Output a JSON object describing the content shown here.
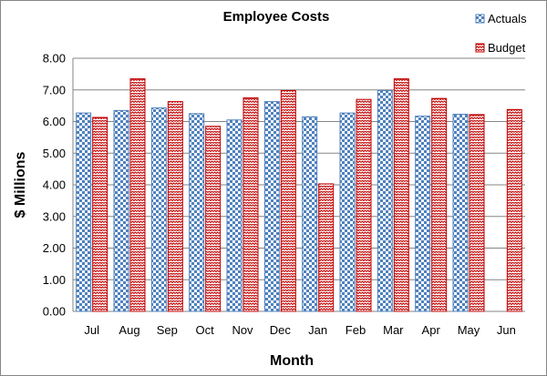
{
  "chart_data": {
    "type": "bar",
    "title": "Employee Costs",
    "xlabel": "Month",
    "ylabel": "$ Millions",
    "categories": [
      "Jul",
      "Aug",
      "Sep",
      "Oct",
      "Nov",
      "Dec",
      "Jan",
      "Feb",
      "Mar",
      "Apr",
      "May",
      "Jun"
    ],
    "series": [
      {
        "name": "Actuals",
        "color": "#4f81bd",
        "pattern": "checkerboard",
        "values": [
          6.27,
          6.35,
          6.43,
          6.25,
          6.05,
          6.63,
          6.15,
          6.27,
          6.98,
          6.17,
          6.23,
          null
        ]
      },
      {
        "name": "Budget",
        "color": "#c00000",
        "pattern": "zigzag",
        "values": [
          6.13,
          7.35,
          6.63,
          5.85,
          6.75,
          6.98,
          4.03,
          6.7,
          7.35,
          6.73,
          6.22,
          6.38
        ]
      }
    ],
    "ylim": [
      0,
      8
    ],
    "yticks": [
      "0.00",
      "1.00",
      "2.00",
      "3.00",
      "4.00",
      "5.00",
      "6.00",
      "7.00",
      "8.00"
    ],
    "grid": true,
    "legend_position": "top-right"
  }
}
